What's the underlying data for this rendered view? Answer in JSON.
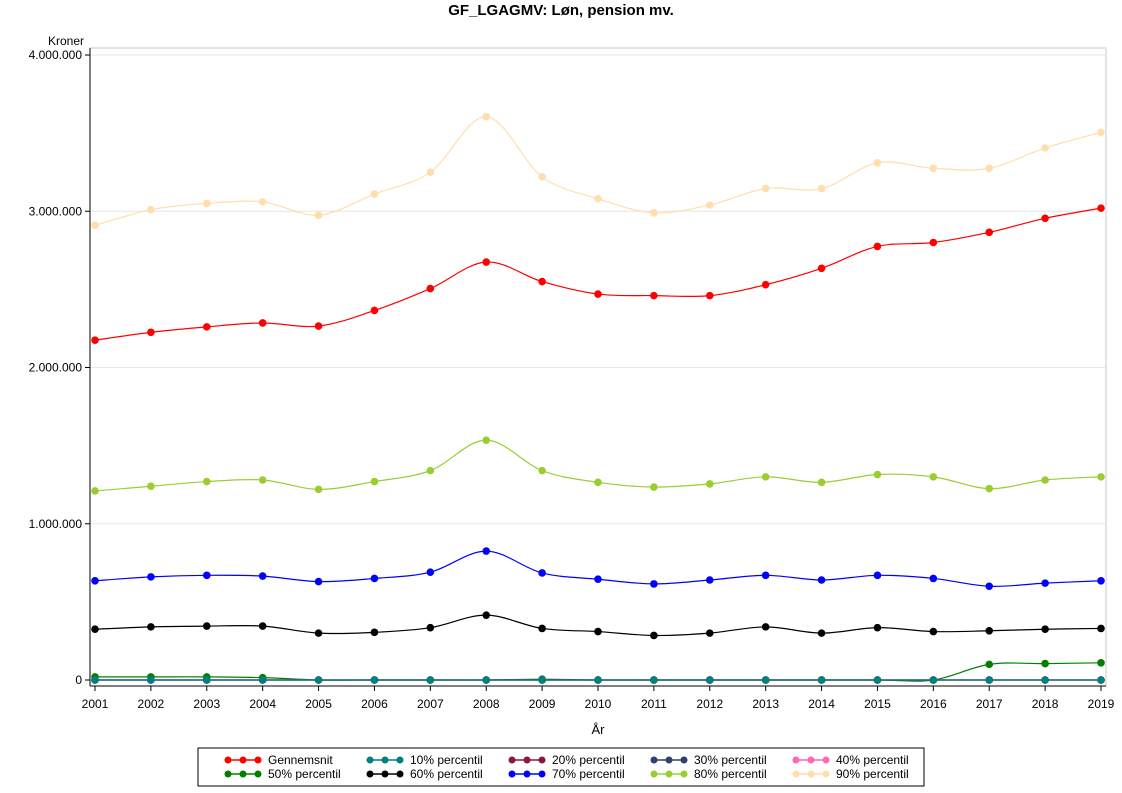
{
  "chart_data": {
    "type": "line",
    "title": "GF_LGAGMV: Løn, pension mv.",
    "xlabel": "År",
    "ylabel": "Kroner",
    "x": [
      2001,
      2002,
      2003,
      2004,
      2005,
      2006,
      2007,
      2008,
      2009,
      2010,
      2011,
      2012,
      2013,
      2014,
      2015,
      2016,
      2017,
      2018,
      2019
    ],
    "ylim": [
      0,
      4000000
    ],
    "yticks": [
      0,
      1000000,
      2000000,
      3000000,
      4000000
    ],
    "ytick_labels": [
      "0",
      "1.000.000",
      "2.000.000",
      "3.000.000",
      "4.000.000"
    ],
    "grid": true,
    "legend_position": "bottom",
    "series": [
      {
        "name": "Gennemsnit",
        "color": "#ff0000",
        "values": [
          2175000,
          2225000,
          2260000,
          2285000,
          2265000,
          2365000,
          2505000,
          2675000,
          2550000,
          2470000,
          2460000,
          2460000,
          2530000,
          2635000,
          2775000,
          2800000,
          2865000,
          2955000,
          3020000
        ]
      },
      {
        "name": "10% percentil",
        "color": "#008080",
        "values": [
          0,
          0,
          0,
          0,
          0,
          0,
          0,
          0,
          0,
          0,
          0,
          0,
          0,
          0,
          0,
          0,
          0,
          0,
          0
        ]
      },
      {
        "name": "20% percentil",
        "color": "#8b1a3a",
        "values": [
          0,
          0,
          0,
          0,
          0,
          0,
          0,
          0,
          0,
          0,
          0,
          0,
          0,
          0,
          0,
          0,
          0,
          0,
          0
        ]
      },
      {
        "name": "30% percentil",
        "color": "#2f3f6f",
        "values": [
          0,
          0,
          0,
          0,
          0,
          0,
          0,
          0,
          0,
          0,
          0,
          0,
          0,
          0,
          0,
          0,
          0,
          0,
          0
        ]
      },
      {
        "name": "40% percentil",
        "color": "#ff69b4",
        "values": [
          0,
          0,
          0,
          0,
          0,
          0,
          0,
          0,
          0,
          0,
          0,
          0,
          0,
          0,
          0,
          0,
          0,
          0,
          0
        ]
      },
      {
        "name": "50% percentil",
        "color": "#008000",
        "values": [
          20000,
          20000,
          20000,
          15000,
          0,
          0,
          0,
          0,
          5000,
          0,
          0,
          0,
          0,
          0,
          0,
          0,
          100000,
          105000,
          110000
        ]
      },
      {
        "name": "60% percentil",
        "color": "#000000",
        "values": [
          325000,
          340000,
          345000,
          345000,
          300000,
          305000,
          335000,
          415000,
          330000,
          310000,
          285000,
          300000,
          340000,
          300000,
          335000,
          310000,
          315000,
          325000,
          330000
        ]
      },
      {
        "name": "70% percentil",
        "color": "#0000ff",
        "values": [
          635000,
          660000,
          670000,
          665000,
          630000,
          650000,
          690000,
          825000,
          685000,
          645000,
          615000,
          640000,
          670000,
          640000,
          670000,
          650000,
          600000,
          620000,
          635000
        ]
      },
      {
        "name": "80% percentil",
        "color": "#9acd32",
        "values": [
          1210000,
          1240000,
          1270000,
          1280000,
          1220000,
          1270000,
          1340000,
          1535000,
          1340000,
          1265000,
          1235000,
          1255000,
          1300000,
          1265000,
          1315000,
          1300000,
          1225000,
          1280000,
          1300000
        ]
      },
      {
        "name": "90% percentil",
        "color": "#ffdead",
        "values": [
          2910000,
          3010000,
          3050000,
          3060000,
          2975000,
          3110000,
          3250000,
          3605000,
          3220000,
          3080000,
          2990000,
          3040000,
          3145000,
          3145000,
          3310000,
          3275000,
          3275000,
          3405000,
          3505000
        ]
      }
    ]
  }
}
